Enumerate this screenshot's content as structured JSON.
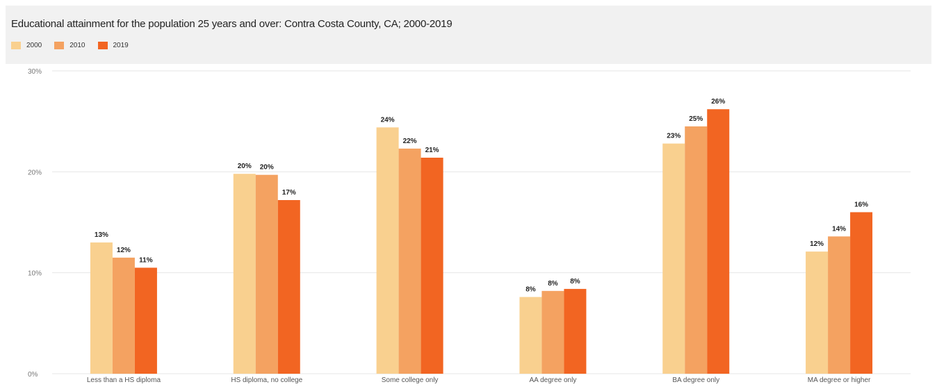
{
  "chart_data": {
    "type": "bar",
    "title": "Educational attainment for the population 25 years and over: Contra Costa County, CA; 2000-2019",
    "categories": [
      "Less than a HS diploma",
      "HS diploma, no college",
      "Some college only",
      "AA degree only",
      "BA degree only",
      "MA degree or higher"
    ],
    "series": [
      {
        "name": "2000",
        "color": "#f9d08f",
        "values": [
          13,
          19.8,
          24.4,
          7.6,
          22.8,
          12.1
        ],
        "labels": [
          "13%",
          "20%",
          "24%",
          "8%",
          "23%",
          "12%"
        ]
      },
      {
        "name": "2010",
        "color": "#f4a261",
        "values": [
          11.5,
          19.7,
          22.3,
          8.2,
          24.5,
          13.6
        ],
        "labels": [
          "12%",
          "20%",
          "22%",
          "8%",
          "25%",
          "14%"
        ]
      },
      {
        "name": "2019",
        "color": "#f26522",
        "values": [
          10.5,
          17.2,
          21.4,
          8.4,
          26.2,
          16.0
        ],
        "labels": [
          "11%",
          "17%",
          "21%",
          "8%",
          "26%",
          "16%"
        ]
      }
    ],
    "y_ticks": [
      "0%",
      "10%",
      "20%",
      "30%"
    ],
    "y_tick_values": [
      0,
      10,
      20,
      30
    ],
    "ylim": [
      0,
      30
    ],
    "grid": true,
    "legend_position": "top-left"
  }
}
